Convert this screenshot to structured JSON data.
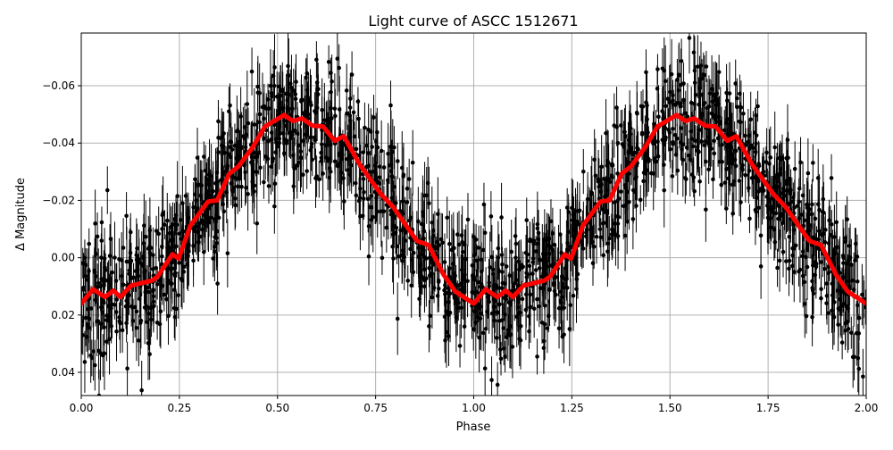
{
  "chart_data": {
    "type": "scatter",
    "title": "Light curve of ASCC 1512671",
    "xlabel": "Phase",
    "ylabel": "Δ Magnitude",
    "xlim": [
      0.0,
      2.0
    ],
    "ylim": [
      0.0481,
      -0.0784
    ],
    "y_inverted": true,
    "grid": true,
    "xticks": [
      "0.00",
      "0.25",
      "0.50",
      "0.75",
      "1.00",
      "1.25",
      "1.50",
      "1.75",
      "2.00"
    ],
    "xtick_values": [
      0,
      0.25,
      0.5,
      0.75,
      1.0,
      1.25,
      1.5,
      1.75,
      2.0
    ],
    "yticks": [
      "−0.06",
      "−0.04",
      "−0.02",
      "0.00",
      "0.02",
      "0.04"
    ],
    "ytick_values": [
      -0.06,
      -0.04,
      -0.02,
      0.0,
      0.02,
      0.04
    ],
    "series": [
      {
        "kind": "errorbar-points",
        "color": "#000000",
        "note_visible": "dense black points with vertical error bars, scattered about the smoothed curve"
      },
      {
        "kind": "line",
        "color": "#ff0000",
        "x": [
          0,
          0.03,
          0.06,
          0.082,
          0.1,
          0.127,
          0.18,
          0.195,
          0.232,
          0.248,
          0.278,
          0.323,
          0.346,
          0.377,
          0.4,
          0.437,
          0.468,
          0.517,
          0.539,
          0.562,
          0.589,
          0.616,
          0.646,
          0.669,
          0.71,
          0.764,
          0.794,
          0.855,
          0.885,
          0.923,
          0.953,
          1.0,
          1.03,
          1.06,
          1.082,
          1.1,
          1.127,
          1.18,
          1.195,
          1.232,
          1.248,
          1.278,
          1.323,
          1.346,
          1.377,
          1.4,
          1.437,
          1.468,
          1.517,
          1.539,
          1.562,
          1.589,
          1.616,
          1.646,
          1.669,
          1.71,
          1.764,
          1.794,
          1.855,
          1.885,
          1.923,
          1.953,
          2.0
        ],
        "y": [
          0.016,
          0.011,
          0.0137,
          0.0115,
          0.0137,
          0.0097,
          0.008,
          0.0065,
          -0.0012,
          0.0003,
          -0.0112,
          -0.0196,
          -0.02,
          -0.0293,
          -0.0318,
          -0.0386,
          -0.0458,
          -0.0498,
          -0.0477,
          -0.0486,
          -0.0461,
          -0.0458,
          -0.0408,
          -0.0424,
          -0.0324,
          -0.0221,
          -0.0178,
          -0.0059,
          -0.0044,
          0.0059,
          0.0118,
          0.016,
          0.011,
          0.0137,
          0.0115,
          0.0137,
          0.0097,
          0.008,
          0.0065,
          -0.0012,
          0.0003,
          -0.0112,
          -0.0196,
          -0.02,
          -0.0293,
          -0.0318,
          -0.0386,
          -0.0458,
          -0.0498,
          -0.0477,
          -0.0486,
          -0.0461,
          -0.0458,
          -0.0408,
          -0.0424,
          -0.0324,
          -0.0221,
          -0.0178,
          -0.0059,
          -0.0044,
          0.0059,
          0.0118,
          0.016
        ]
      }
    ]
  }
}
